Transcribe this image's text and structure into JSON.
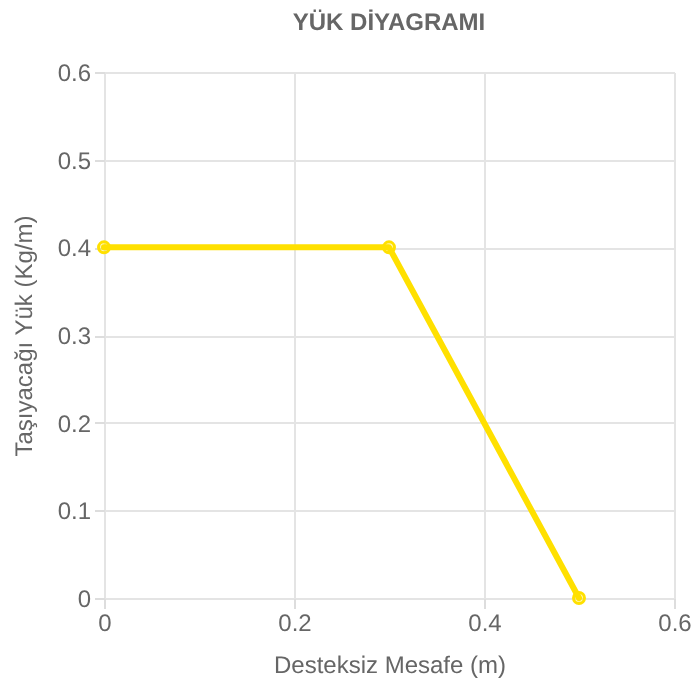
{
  "chart_data": {
    "type": "line",
    "title": "YÜK DİYAGRAMI",
    "xlabel": "Desteksiz Mesafe (m)",
    "ylabel": "Taşıyacağı Yük (Kg/m)",
    "x": [
      0,
      0.3,
      0.5
    ],
    "series": [
      {
        "color": "#ffe000",
        "values": [
          0.4,
          0.4,
          0
        ]
      }
    ],
    "xlim": [
      0,
      0.6
    ],
    "xticks": [
      0,
      0.2,
      0.4,
      0.6
    ],
    "ylim": [
      0,
      0.6
    ],
    "yticks": [
      0,
      0.1,
      0.2,
      0.3,
      0.4,
      0.5,
      0.6
    ],
    "grid": true,
    "marker": "circle",
    "line_style": "solid"
  }
}
